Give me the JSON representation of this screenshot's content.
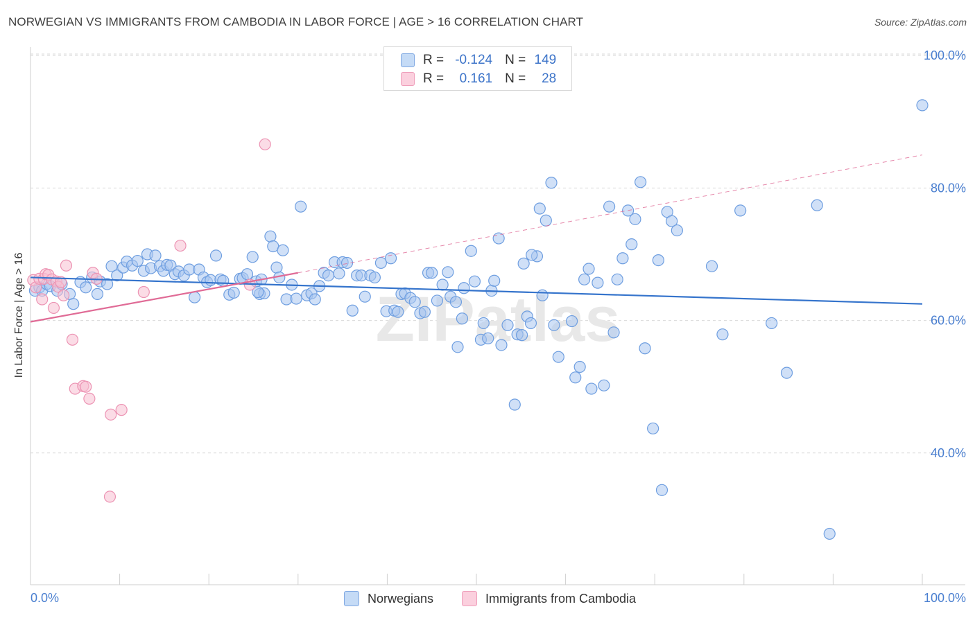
{
  "header": {
    "title": "NORWEGIAN VS IMMIGRANTS FROM CAMBODIA IN LABOR FORCE | AGE > 16 CORRELATION CHART",
    "source": "Source: ZipAtlas.com"
  },
  "watermark": "ZIPatlas",
  "legend": {
    "r_label": "R =",
    "n_label": "N =",
    "rows": [
      {
        "r": "-0.124",
        "n": "149",
        "color": "#a9c7f0"
      },
      {
        "r": "0.161",
        "n": "28",
        "color": "#f7b8cc"
      }
    ]
  },
  "bottom_legend": [
    {
      "label": "Norwegians",
      "color": "#a9c7f0"
    },
    {
      "label": "Immigrants from Cambodia",
      "color": "#f7b8cc"
    }
  ],
  "colors": {
    "blue_line": "#3574cc",
    "blue_fill": "#a9c7f0",
    "blue_stroke": "#6e9ee0",
    "pink_line": "#e06b96",
    "pink_fill": "#f7c0d2",
    "pink_stroke": "#ec93b3",
    "grid": "#d9d9d9",
    "tick_text": "#4a7fd0"
  },
  "chart_data": {
    "type": "scatter",
    "title": "NORWEGIAN VS IMMIGRANTS FROM CAMBODIA IN LABOR FORCE | AGE > 16 CORRELATION CHART",
    "xlabel": "",
    "ylabel": "In Labor Force | Age > 16",
    "xlim": [
      0,
      100
    ],
    "ylim": [
      20,
      102
    ],
    "x_tick_labels": [
      "0.0%",
      "100.0%"
    ],
    "y_ticks": [
      40,
      60,
      80,
      100
    ],
    "y_tick_labels": [
      "40.0%",
      "60.0%",
      "80.0%",
      "100.0%"
    ],
    "grid": true,
    "legend_position": "top-center",
    "series": [
      {
        "name": "Norwegians",
        "r": -0.124,
        "n": 149,
        "trend": {
          "x": [
            0,
            100
          ],
          "y": [
            66.5,
            62.5
          ]
        },
        "points": [
          [
            0.5,
            64.5
          ],
          [
            1,
            65
          ],
          [
            1.3,
            64.5
          ],
          [
            1.8,
            65.5
          ],
          [
            2.2,
            65.2
          ],
          [
            3,
            64.5
          ],
          [
            3.5,
            65.5
          ],
          [
            4.4,
            64
          ],
          [
            4.8,
            62.5
          ],
          [
            5.6,
            65.8
          ],
          [
            6.2,
            65
          ],
          [
            6.9,
            66.5
          ],
          [
            7.5,
            64
          ],
          [
            7.8,
            65.9
          ],
          [
            8.6,
            65.5
          ],
          [
            9.1,
            68.2
          ],
          [
            9.7,
            66.8
          ],
          [
            10.4,
            68
          ],
          [
            10.8,
            68.9
          ],
          [
            11.4,
            68.3
          ],
          [
            12,
            69
          ],
          [
            12.7,
            67.5
          ],
          [
            13.1,
            70
          ],
          [
            13.5,
            67.9
          ],
          [
            14,
            69.8
          ],
          [
            14.5,
            68.2
          ],
          [
            14.9,
            67.5
          ],
          [
            15.3,
            68.4
          ],
          [
            15.7,
            68.3
          ],
          [
            16.2,
            67
          ],
          [
            16.6,
            67.4
          ],
          [
            17.2,
            66.8
          ],
          [
            17.8,
            67.7
          ],
          [
            18.4,
            63.5
          ],
          [
            18.9,
            67.7
          ],
          [
            19.4,
            66.5
          ],
          [
            19.8,
            65.8
          ],
          [
            20.2,
            66.1
          ],
          [
            20.8,
            69.8
          ],
          [
            21.3,
            66.2
          ],
          [
            21.6,
            66
          ],
          [
            22.3,
            63.9
          ],
          [
            22.8,
            64.2
          ],
          [
            23.5,
            66.3
          ],
          [
            23.8,
            66.4
          ],
          [
            24.3,
            67
          ],
          [
            24.9,
            69.6
          ],
          [
            25.3,
            65.9
          ],
          [
            25.7,
            64
          ],
          [
            26.2,
            64.1
          ],
          [
            25.5,
            64.3
          ],
          [
            25.9,
            66.2
          ],
          [
            26.9,
            72.7
          ],
          [
            27.2,
            71.2
          ],
          [
            27.6,
            68
          ],
          [
            27.9,
            66.5
          ],
          [
            28.3,
            70.6
          ],
          [
            28.7,
            63.2
          ],
          [
            29.3,
            65.4
          ],
          [
            29.8,
            63.3
          ],
          [
            30.3,
            77.2
          ],
          [
            31,
            63.8
          ],
          [
            31.5,
            64.1
          ],
          [
            31.9,
            63.2
          ],
          [
            32.4,
            65.2
          ],
          [
            32.9,
            67.2
          ],
          [
            33.4,
            66.8
          ],
          [
            34.1,
            68.8
          ],
          [
            34.6,
            67.1
          ],
          [
            35,
            68.8
          ],
          [
            35.5,
            68.7
          ],
          [
            36.1,
            61.5
          ],
          [
            36.6,
            66.8
          ],
          [
            37.1,
            66.8
          ],
          [
            37.5,
            63.6
          ],
          [
            38.1,
            66.8
          ],
          [
            38.6,
            66.5
          ],
          [
            39.3,
            68.7
          ],
          [
            39.9,
            61.4
          ],
          [
            40.4,
            69.4
          ],
          [
            40.8,
            61.5
          ],
          [
            41.2,
            61.3
          ],
          [
            41.6,
            64
          ],
          [
            42,
            64.1
          ],
          [
            42.6,
            63.4
          ],
          [
            43.1,
            62.8
          ],
          [
            43.7,
            61.1
          ],
          [
            44.2,
            61.3
          ],
          [
            44.6,
            67.2
          ],
          [
            45,
            67.2
          ],
          [
            45.6,
            63
          ],
          [
            46.2,
            65.4
          ],
          [
            46.8,
            67.3
          ],
          [
            47.1,
            63.6
          ],
          [
            47.7,
            62.8
          ],
          [
            47.9,
            56
          ],
          [
            48.4,
            60.3
          ],
          [
            48.6,
            64.9
          ],
          [
            49.4,
            70.5
          ],
          [
            49.8,
            65.9
          ],
          [
            50.5,
            57.1
          ],
          [
            50.8,
            59.6
          ],
          [
            51.3,
            57.3
          ],
          [
            51.7,
            64.5
          ],
          [
            52,
            66
          ],
          [
            52.5,
            72.4
          ],
          [
            52.8,
            56.3
          ],
          [
            53.5,
            59.3
          ],
          [
            54.3,
            47.3
          ],
          [
            54.6,
            57.9
          ],
          [
            55.1,
            57.8
          ],
          [
            55.3,
            68.6
          ],
          [
            55.7,
            60.6
          ],
          [
            56.1,
            59.6
          ],
          [
            56.8,
            69.7
          ],
          [
            56.2,
            69.9
          ],
          [
            57.1,
            76.9
          ],
          [
            57.4,
            63.8
          ],
          [
            57.8,
            75.1
          ],
          [
            58.4,
            80.8
          ],
          [
            58.7,
            59.3
          ],
          [
            59.2,
            54.5
          ],
          [
            60.7,
            59.9
          ],
          [
            61.1,
            51.4
          ],
          [
            61.6,
            53
          ],
          [
            62.1,
            66.2
          ],
          [
            62.6,
            67.8
          ],
          [
            62.9,
            49.7
          ],
          [
            63.6,
            65.7
          ],
          [
            64.3,
            50.2
          ],
          [
            64.9,
            77.2
          ],
          [
            65.4,
            58.2
          ],
          [
            65.8,
            66.2
          ],
          [
            66.4,
            69.4
          ],
          [
            67,
            76.6
          ],
          [
            67.4,
            71.5
          ],
          [
            67.8,
            75.3
          ],
          [
            68.4,
            80.9
          ],
          [
            68.9,
            55.8
          ],
          [
            69.8,
            43.7
          ],
          [
            70.4,
            69.1
          ],
          [
            70.8,
            34.4
          ],
          [
            71.4,
            76.4
          ],
          [
            71.9,
            75
          ],
          [
            72.5,
            73.6
          ],
          [
            76.4,
            68.2
          ],
          [
            77.6,
            57.9
          ],
          [
            79.6,
            76.6
          ],
          [
            83.1,
            59.6
          ],
          [
            84.8,
            52.1
          ],
          [
            88.2,
            77.4
          ],
          [
            89.6,
            27.8
          ],
          [
            100,
            92.5
          ]
        ]
      },
      {
        "name": "Immigrants from Cambodia",
        "r": 0.161,
        "n": 28,
        "trend": {
          "x": [
            0,
            30
          ],
          "y": [
            59.8,
            67.2
          ]
        },
        "trend_extended": {
          "x": [
            30,
            100
          ],
          "y": [
            67.2,
            85
          ]
        },
        "points": [
          [
            0.3,
            66.1
          ],
          [
            0.6,
            65
          ],
          [
            1,
            66.3
          ],
          [
            1.3,
            63.2
          ],
          [
            1.5,
            66.3
          ],
          [
            1.7,
            67
          ],
          [
            2,
            66.9
          ],
          [
            2.4,
            66.2
          ],
          [
            2.6,
            61.9
          ],
          [
            2.9,
            65.9
          ],
          [
            3.1,
            65.1
          ],
          [
            3.4,
            65.8
          ],
          [
            3.7,
            63.8
          ],
          [
            4,
            68.3
          ],
          [
            4.7,
            57.1
          ],
          [
            5,
            49.7
          ],
          [
            5.9,
            50.1
          ],
          [
            6.2,
            50
          ],
          [
            6.6,
            48.2
          ],
          [
            7,
            67.2
          ],
          [
            7.4,
            66.3
          ],
          [
            8.9,
            33.4
          ],
          [
            9,
            45.8
          ],
          [
            10.2,
            46.5
          ],
          [
            12.7,
            64.3
          ],
          [
            16.8,
            71.3
          ],
          [
            24.6,
            65.4
          ],
          [
            26.3,
            86.6
          ]
        ]
      }
    ]
  }
}
